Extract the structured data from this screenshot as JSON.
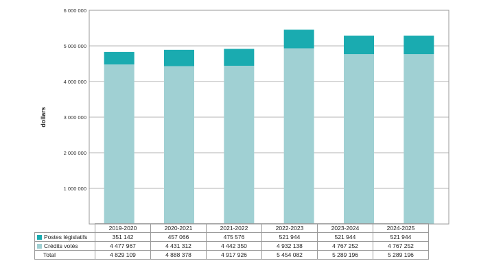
{
  "chart_data": {
    "type": "bar",
    "stacked": true,
    "ylabel": "dollars",
    "ylim": [
      0,
      6000000
    ],
    "yticks": [
      "6 000 000",
      "5 000 000",
      "4 000 000",
      "3 000 000",
      "2 000 000",
      "1 000 000"
    ],
    "categories": [
      "2019-2020",
      "2020-2021",
      "2021-2022",
      "2022-2023",
      "2023-2024",
      "2024-2025"
    ],
    "series": [
      {
        "name": "Crédits votés",
        "color": "#a0d0d3",
        "values": [
          4477967,
          4431312,
          4442350,
          4932138,
          4767252,
          4767252
        ],
        "labels": [
          "4 477 967",
          "4 431 312",
          "4 442 350",
          "4 932 138",
          "4 767 252",
          "4 767 252"
        ]
      },
      {
        "name": "Postes législatifs",
        "color": "#1aabb0",
        "values": [
          351142,
          457066,
          475576,
          521944,
          521944,
          521944
        ],
        "labels": [
          "351 142",
          "457 066",
          "475 576",
          "521 944",
          "521 944",
          "521 944"
        ]
      }
    ],
    "total": {
      "name": "Total",
      "labels": [
        "4 829 109",
        "4 888 378",
        "4 917 926",
        "5 454 082",
        "5 289 196",
        "5 289 196"
      ]
    },
    "grid": true,
    "legend": "table-below"
  }
}
